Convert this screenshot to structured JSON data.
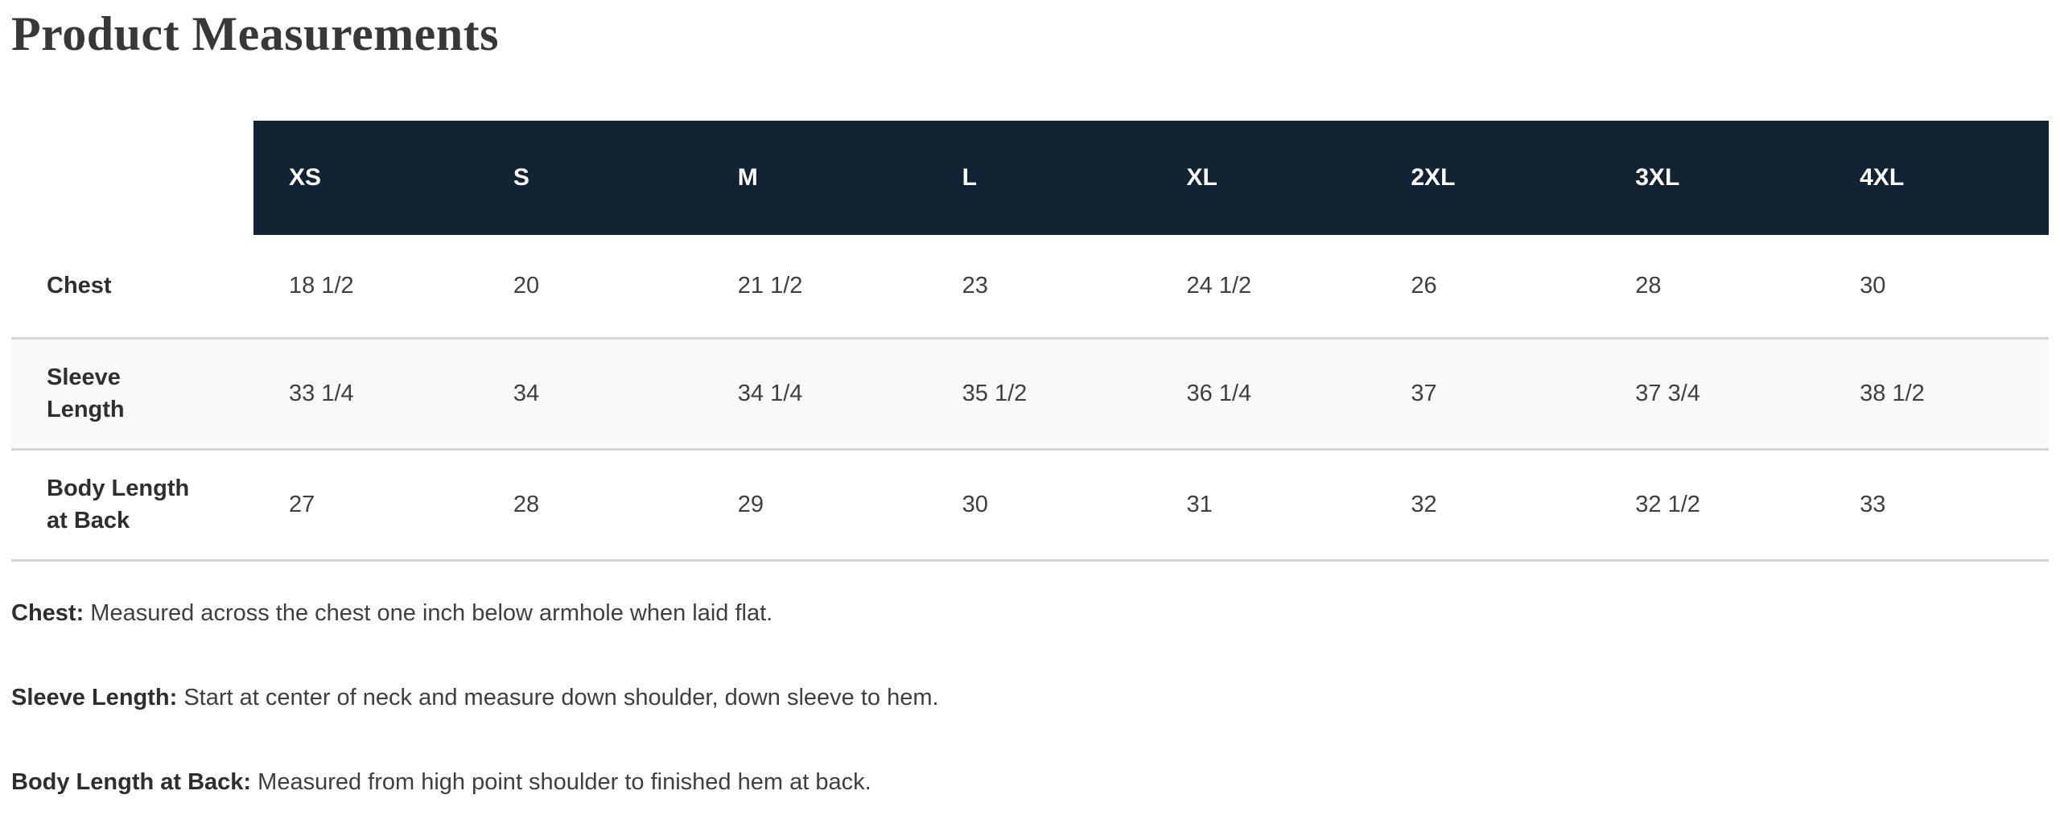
{
  "page": {
    "title": "Product Measurements"
  },
  "table": {
    "sizes": [
      "XS",
      "S",
      "M",
      "L",
      "XL",
      "2XL",
      "3XL",
      "4XL"
    ],
    "rows": [
      {
        "label": "Chest",
        "values": [
          "18 1/2",
          "20",
          "21 1/2",
          "23",
          "24 1/2",
          "26",
          "28",
          "30"
        ]
      },
      {
        "label": "Sleeve\nLength",
        "values": [
          "33 1/4",
          "34",
          "34 1/4",
          "35 1/2",
          "36 1/4",
          "37",
          "37 3/4",
          "38 1/2"
        ]
      },
      {
        "label": "Body Length\nat Back",
        "values": [
          "27",
          "28",
          "29",
          "30",
          "31",
          "32",
          "32 1/2",
          "33"
        ]
      }
    ]
  },
  "notes": [
    {
      "term": "Chest:",
      "description": "Measured across the chest one inch below armhole when laid flat."
    },
    {
      "term": "Sleeve Length:",
      "description": "Start at center of neck and measure down shoulder, down sleeve to hem."
    },
    {
      "term": "Body Length at Back:",
      "description": "Measured from high point shoulder to finished hem at back."
    }
  ],
  "colors": {
    "header_bg": "#122433",
    "header_text": "#ffffff",
    "stripe_bg": "#f9f9f9",
    "divider": "#d5d5d5",
    "title_text": "#383838",
    "body_text": "#3f3f3f"
  }
}
